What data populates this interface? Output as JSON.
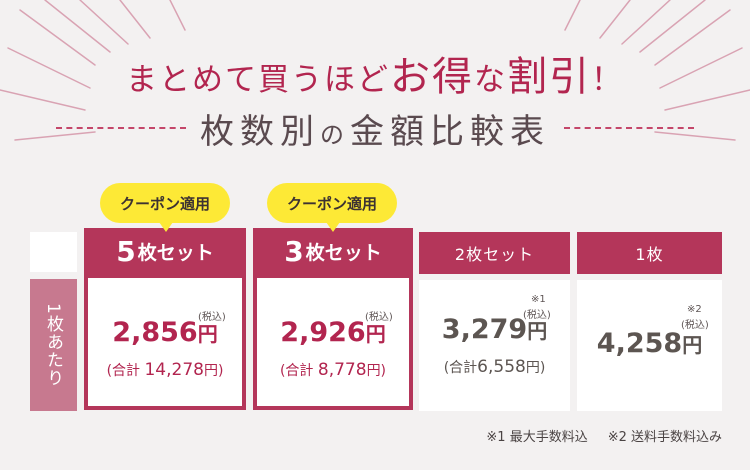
{
  "headline": {
    "part1": "まとめて買うほど",
    "part2": "お",
    "part3": "得",
    "part4": "な",
    "part5": "割引",
    "part6": "！"
  },
  "subtitle": {
    "part1": "枚数別",
    "part2": "の",
    "part3": "金額比較表"
  },
  "side_label": "1枚あたり",
  "coupon_label": "クーポン適用",
  "columns": [
    {
      "head_num": "5",
      "head_text": "枚セット",
      "price_num": "2,856",
      "yen": "円",
      "tax": "(税込)",
      "total_prefix": "(合計 ",
      "total_num": "14,278",
      "total_suffix": "円)",
      "mark": ""
    },
    {
      "head_num": "3",
      "head_text": "枚セット",
      "price_num": "2,926",
      "yen": "円",
      "tax": "(税込)",
      "total_prefix": "(合計 ",
      "total_num": "8,778",
      "total_suffix": "円)",
      "mark": ""
    },
    {
      "head": "2枚セット",
      "price_num": "3,279",
      "yen": "円",
      "tax": "(税込)",
      "total_prefix": "(合計",
      "total_num": "6,558",
      "total_suffix": "円)",
      "mark": "※1"
    },
    {
      "head": "1枚",
      "price_num": "4,258",
      "yen": "円",
      "tax": "(税込)",
      "mark": "※2"
    }
  ],
  "notes": [
    "※1 最大手数料込",
    "※2 送料手数料込み"
  ],
  "colors": {
    "accent": "#b4365a",
    "coupon": "#fde936",
    "side": "#c7798f",
    "background": "#f3f1f1"
  }
}
